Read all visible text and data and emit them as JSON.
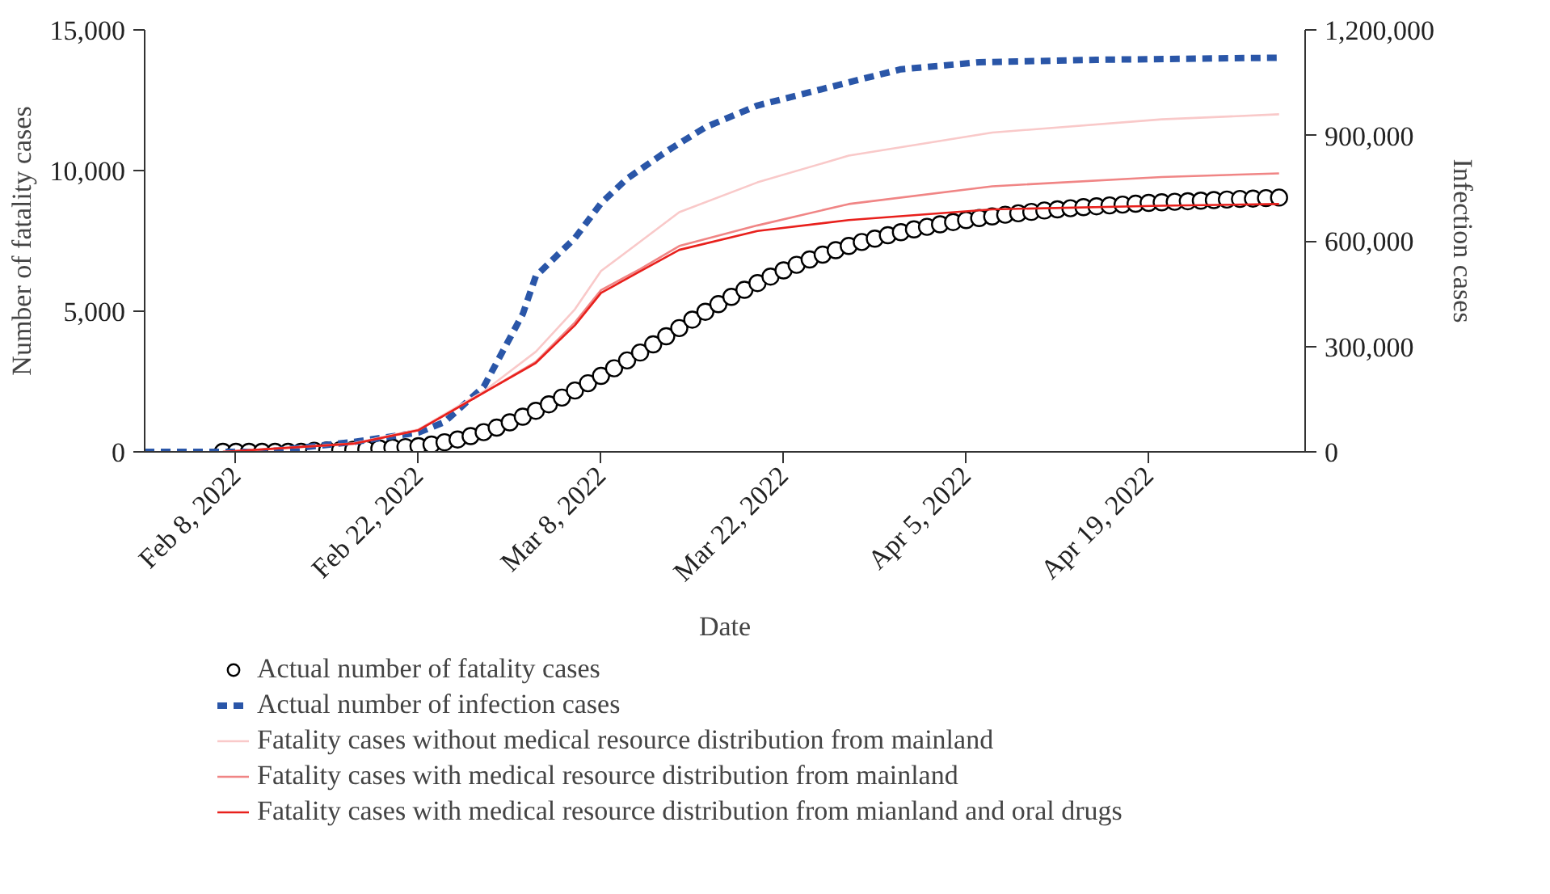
{
  "chart_data": {
    "type": "line",
    "xlabel": "Date",
    "ylabel": "Number of fatality cases",
    "y2label": "Infection cases",
    "xlim": [
      "2022-02-01",
      "2022-05-01"
    ],
    "xticks": [
      {
        "value": "2022-02-08",
        "label": "Feb 8, 2022"
      },
      {
        "value": "2022-02-22",
        "label": "Feb 22, 2022"
      },
      {
        "value": "2022-03-08",
        "label": "Mar 8, 2022"
      },
      {
        "value": "2022-03-22",
        "label": "Mar 22, 2022"
      },
      {
        "value": "2022-04-05",
        "label": "Apr 5, 2022"
      },
      {
        "value": "2022-04-19",
        "label": "Apr 19, 2022"
      }
    ],
    "ylim": [
      0,
      15000
    ],
    "yticks": [
      0,
      {
        "value": 5000,
        "label": "5,000"
      },
      {
        "value": 10000,
        "label": "10,000"
      },
      {
        "value": 15000,
        "label": "15,000"
      }
    ],
    "y2lim": [
      0,
      1200000
    ],
    "y2ticks": [
      0,
      {
        "value": 300000,
        "label": "300,000"
      },
      {
        "value": 600000,
        "label": "600,000"
      },
      {
        "value": 900000,
        "label": "900,000"
      },
      {
        "value": 1200000,
        "label": "1,200,000"
      }
    ],
    "grid": false,
    "legend": "bottom",
    "series": [
      {
        "name": "Actual number of fatality cases",
        "type": "scatter",
        "marker": "circle",
        "color": "#000000",
        "x": [
          "2022-02-07",
          "2022-02-08",
          "2022-02-09",
          "2022-02-10",
          "2022-02-11",
          "2022-02-12",
          "2022-02-13",
          "2022-02-14",
          "2022-02-15",
          "2022-02-16",
          "2022-02-17",
          "2022-02-18",
          "2022-02-19",
          "2022-02-20",
          "2022-02-21",
          "2022-02-22",
          "2022-02-23",
          "2022-02-24",
          "2022-02-25",
          "2022-02-26",
          "2022-02-27",
          "2022-02-28",
          "2022-03-01",
          "2022-03-02",
          "2022-03-03",
          "2022-03-04",
          "2022-03-05",
          "2022-03-06",
          "2022-03-07",
          "2022-03-08",
          "2022-03-09",
          "2022-03-10",
          "2022-03-11",
          "2022-03-12",
          "2022-03-13",
          "2022-03-14",
          "2022-03-15",
          "2022-03-16",
          "2022-03-17",
          "2022-03-18",
          "2022-03-19",
          "2022-03-20",
          "2022-03-21",
          "2022-03-22",
          "2022-03-23",
          "2022-03-24",
          "2022-03-25",
          "2022-03-26",
          "2022-03-27",
          "2022-03-28",
          "2022-03-29",
          "2022-03-30",
          "2022-03-31",
          "2022-04-01",
          "2022-04-02",
          "2022-04-03",
          "2022-04-04",
          "2022-04-05",
          "2022-04-06",
          "2022-04-07",
          "2022-04-08",
          "2022-04-09",
          "2022-04-10",
          "2022-04-11",
          "2022-04-12",
          "2022-04-13",
          "2022-04-14",
          "2022-04-15",
          "2022-04-16",
          "2022-04-17",
          "2022-04-18",
          "2022-04-19",
          "2022-04-20",
          "2022-04-21",
          "2022-04-22",
          "2022-04-23",
          "2022-04-24",
          "2022-04-25",
          "2022-04-26",
          "2022-04-27",
          "2022-04-28",
          "2022-04-29"
        ],
        "values": [
          0,
          0,
          0,
          0,
          0,
          0,
          0,
          40,
          50,
          60,
          75,
          95,
          120,
          150,
          170,
          200,
          260,
          340,
          440,
          560,
          700,
          860,
          1050,
          1250,
          1460,
          1690,
          1930,
          2180,
          2440,
          2700,
          2970,
          3250,
          3530,
          3820,
          4110,
          4400,
          4700,
          4980,
          5250,
          5510,
          5760,
          6000,
          6230,
          6450,
          6650,
          6840,
          7010,
          7170,
          7320,
          7460,
          7580,
          7700,
          7810,
          7910,
          8000,
          8090,
          8170,
          8240,
          8310,
          8370,
          8430,
          8480,
          8530,
          8580,
          8620,
          8660,
          8700,
          8730,
          8760,
          8790,
          8820,
          8850,
          8870,
          8890,
          8910,
          8930,
          8950,
          8970,
          8990,
          9000,
          9020,
          9040
        ]
      },
      {
        "name": "Actual number of infection cases",
        "axis": "y2",
        "line_style": "dashed",
        "color": "#2a56a8",
        "x": [
          "2022-02-01",
          "2022-02-10",
          "2022-02-17",
          "2022-02-22",
          "2022-02-24",
          "2022-02-27",
          "2022-03-02",
          "2022-03-03",
          "2022-03-06",
          "2022-03-08",
          "2022-03-10",
          "2022-03-13",
          "2022-03-16",
          "2022-03-20",
          "2022-03-27",
          "2022-03-31",
          "2022-04-06",
          "2022-04-15",
          "2022-04-29"
        ],
        "values": [
          0,
          0,
          28000,
          55000,
          85000,
          185000,
          392000,
          500000,
          608000,
          707000,
          777000,
          854000,
          923000,
          985000,
          1051000,
          1088000,
          1108000,
          1115000,
          1121000
        ]
      },
      {
        "name": "Fatality cases without medical resource distribution from mainland",
        "line_style": "solid",
        "color": "#f9c9c9",
        "x": [
          "2022-02-07",
          "2022-02-17",
          "2022-02-22",
          "2022-02-27",
          "2022-03-03",
          "2022-03-06",
          "2022-03-08",
          "2022-03-11",
          "2022-03-14",
          "2022-03-20",
          "2022-03-27",
          "2022-04-07",
          "2022-04-20",
          "2022-04-29"
        ],
        "values": [
          0,
          300,
          800,
          2150,
          3560,
          5070,
          6430,
          7470,
          8520,
          9580,
          10530,
          11350,
          11820,
          12000
        ]
      },
      {
        "name": "Fatality cases with medical resource distribution from mainland",
        "line_style": "solid",
        "color": "#f08585",
        "x": [
          "2022-02-07",
          "2022-02-17",
          "2022-02-22",
          "2022-02-27",
          "2022-03-03",
          "2022-03-06",
          "2022-03-08",
          "2022-03-11",
          "2022-03-14",
          "2022-03-20",
          "2022-03-27",
          "2022-04-07",
          "2022-04-20",
          "2022-04-29"
        ],
        "values": [
          0,
          290,
          770,
          2100,
          3200,
          4600,
          5750,
          6500,
          7320,
          8050,
          8810,
          9440,
          9770,
          9900
        ]
      },
      {
        "name": "Fatality cases with medical resource distribution from mianland and oral drugs",
        "line_style": "solid",
        "color": "#e8201c",
        "x": [
          "2022-02-07",
          "2022-02-17",
          "2022-02-22",
          "2022-02-27",
          "2022-03-03",
          "2022-03-06",
          "2022-03-08",
          "2022-03-11",
          "2022-03-14",
          "2022-03-20",
          "2022-03-27",
          "2022-04-07",
          "2022-04-20",
          "2022-04-29"
        ],
        "values": [
          0,
          290,
          770,
          2100,
          3160,
          4500,
          5650,
          6420,
          7180,
          7850,
          8240,
          8620,
          8750,
          8810
        ]
      }
    ]
  }
}
